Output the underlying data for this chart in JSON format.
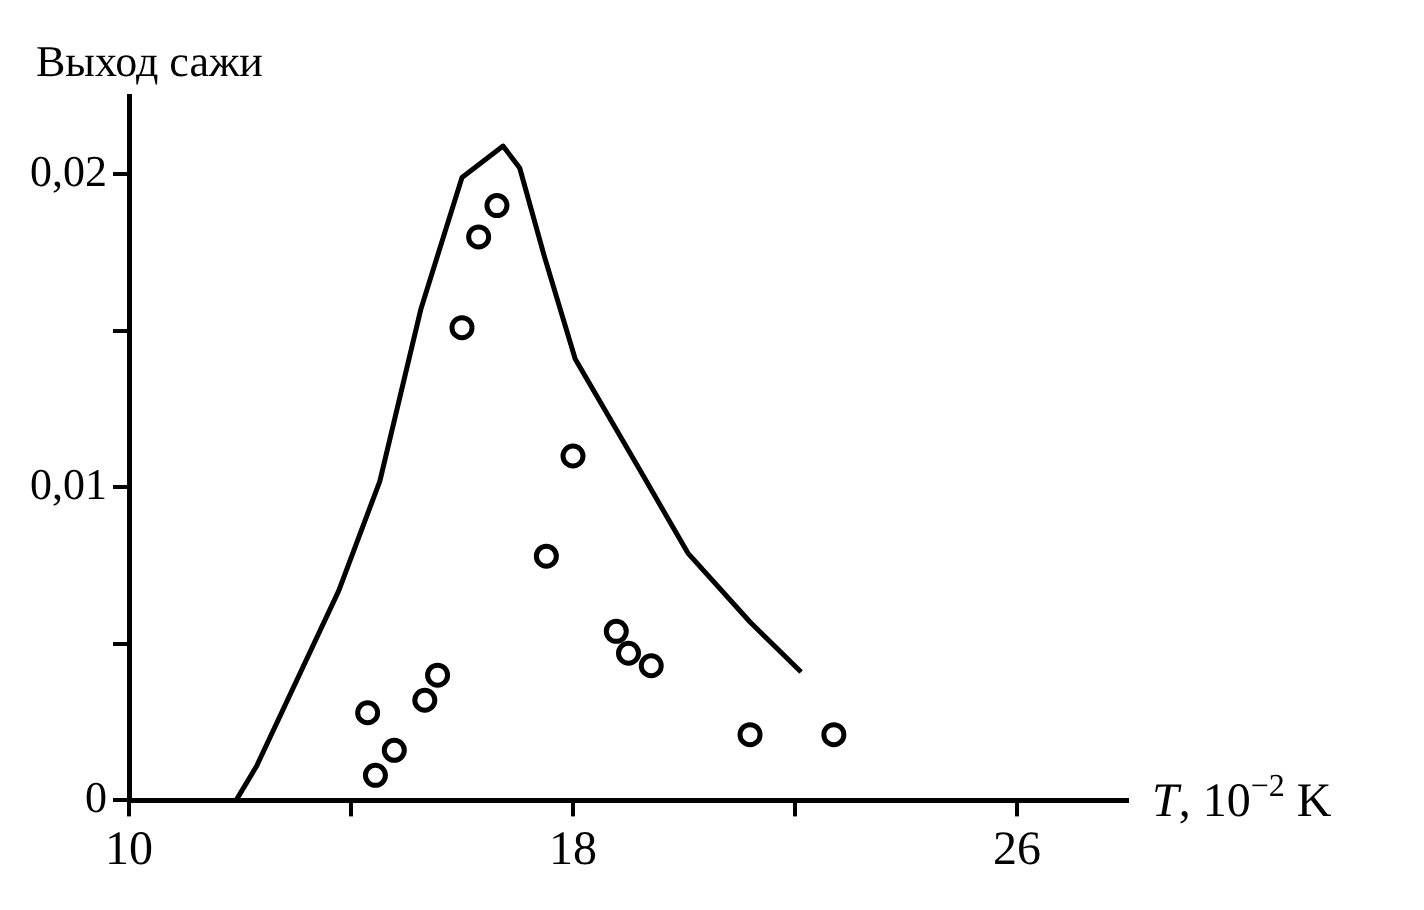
{
  "chart_data": {
    "type": "scatter",
    "ylabel": "Выход сажи",
    "xlabel": "T, 10$^{−2}$ K",
    "xlim": [
      10,
      28
    ],
    "xticks": [
      10,
      {
        "value": 14,
        "label": null
      },
      18,
      {
        "value": 22,
        "label": null
      },
      26
    ],
    "ylim": [
      0,
      0.0225
    ],
    "yticks": [
      0,
      {
        "value": 0.005,
        "label": null
      },
      {
        "value": 0.01,
        "label": "0,01"
      },
      {
        "value": 0.015,
        "label": null
      },
      {
        "value": 0.02,
        "label": "0,02"
      }
    ],
    "grid": false,
    "legend": false,
    "series": [
      {
        "type": "line",
        "color": "#000000",
        "line_style": "solid",
        "marker": "none",
        "x": [
          11.93,
          12.3,
          13.78,
          14.52,
          15.26,
          16.0,
          16.74,
          17.04,
          17.48,
          18.04,
          19.19,
          20.07,
          21.19,
          22.11
        ],
        "values": [
          0,
          0.0011,
          0.0067,
          0.0102,
          0.0157,
          0.0199,
          0.0209,
          0.0202,
          0.0174,
          0.0141,
          0.0106,
          0.0079,
          0.0057,
          0.0041
        ]
      },
      {
        "color": "#000000",
        "marker": "circle",
        "x": [
          14.3,
          14.44,
          14.78,
          15.33,
          15.56,
          16.0,
          16.3,
          16.63,
          17.52,
          18.0,
          18.78,
          19.0,
          19.41,
          21.19,
          22.7
        ],
        "values": [
          0.0028,
          0.0008,
          0.0016,
          0.0032,
          0.004,
          0.0151,
          0.018,
          0.019,
          0.0078,
          0.011,
          0.0054,
          0.0047,
          0.0043,
          0.0021,
          0.0021
        ]
      }
    ]
  }
}
